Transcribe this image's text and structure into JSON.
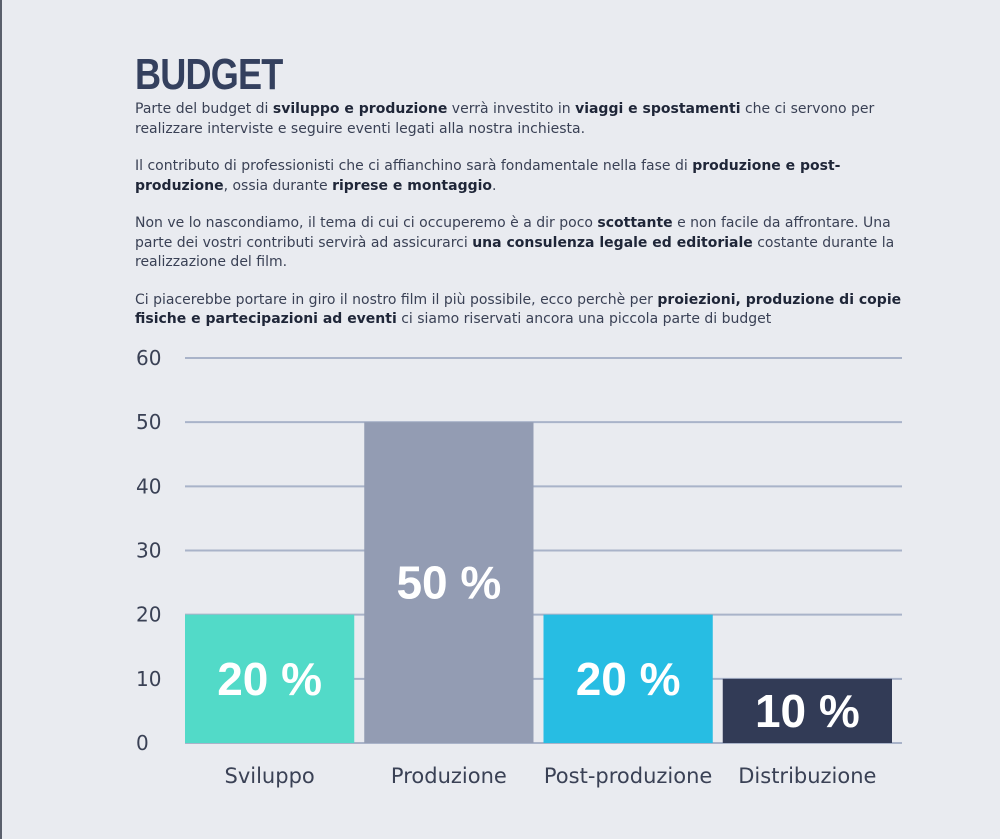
{
  "title": "BUDGET",
  "paragraphs": [
    [
      {
        "t": "Parte del budget di ",
        "b": false
      },
      {
        "t": "sviluppo e produzione",
        "b": true
      },
      {
        "t": " verrà investito in ",
        "b": false
      },
      {
        "t": "viaggi e spostamenti",
        "b": true
      },
      {
        "t": " che ci servono per realizzare interviste e seguire eventi legati alla nostra inchiesta.",
        "b": false
      }
    ],
    [
      {
        "t": "Il contributo di professionisti che ci affianchino sarà fondamentale nella fase di ",
        "b": false
      },
      {
        "t": "produzione e post-produzione",
        "b": true
      },
      {
        "t": ", ossia durante ",
        "b": false
      },
      {
        "t": "riprese e montaggio",
        "b": true
      },
      {
        "t": ".",
        "b": false
      }
    ],
    [
      {
        "t": "Non ve lo nascondiamo, il tema di cui ci occuperemo è a dir poco ",
        "b": false
      },
      {
        "t": "scottante",
        "b": true
      },
      {
        "t": " e non facile da affrontare. Una parte dei vostri contributi servirà ad assicurarci ",
        "b": false
      },
      {
        "t": "una consulenza legale ed editoriale",
        "b": true
      },
      {
        "t": " costante durante la realizzazione del film.",
        "b": false
      }
    ],
    [
      {
        "t": "Ci piacerebbe portare in giro il nostro film il più possibile, ecco perchè per ",
        "b": false
      },
      {
        "t": "proiezioni, produzione di copie fisiche e partecipazioni ad eventi",
        "b": true
      },
      {
        "t": " ci siamo riservati ancora una piccola parte di budget",
        "b": false
      }
    ]
  ],
  "chart_data": {
    "type": "bar",
    "categories": [
      "Sviluppo",
      "Produzione",
      "Post-produzione",
      "Distribuzione"
    ],
    "values": [
      20,
      50,
      20,
      10
    ],
    "data_labels": [
      "20 %",
      "50 %",
      "20 %",
      "10 %"
    ],
    "colors": [
      "#52dac8",
      "#939cb3",
      "#27bde3",
      "#323b56"
    ],
    "ylim": [
      0,
      60
    ],
    "yticks": [
      0,
      10,
      20,
      30,
      40,
      50,
      60
    ],
    "grid": true,
    "gridColor": "#a9b3c9"
  }
}
